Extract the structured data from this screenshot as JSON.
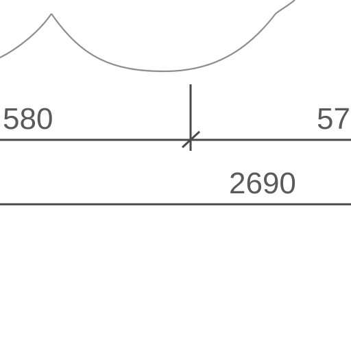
{
  "dimensions": {
    "upper_left": "580",
    "upper_right": "57",
    "overall": "2690"
  }
}
